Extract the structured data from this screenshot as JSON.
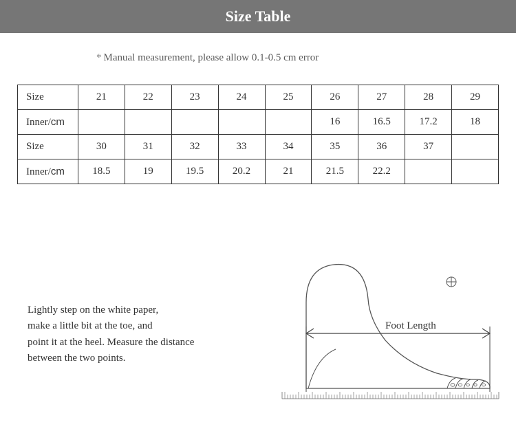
{
  "banner": {
    "title": "Size Table"
  },
  "note": {
    "star": "*",
    "text": "Manual measurement, please allow 0.1-0.5 cm error"
  },
  "table": {
    "row1_label": "Size",
    "row2_label_a": "Inner/",
    "row2_label_b": "cm",
    "row3_label": "Size",
    "row4_label_a": "Inner/",
    "row4_label_b": "cm",
    "row1": [
      "21",
      "22",
      "23",
      "24",
      "25",
      "26",
      "27",
      "28",
      "29"
    ],
    "row2": [
      "",
      "",
      "",
      "",
      "",
      "16",
      "16.5",
      "17.2",
      "18"
    ],
    "row3": [
      "30",
      "31",
      "32",
      "33",
      "34",
      "35",
      "36",
      "37",
      ""
    ],
    "row4": [
      "18.5",
      "19",
      "19.5",
      "20.2",
      "21",
      "21.5",
      "22.2",
      "",
      ""
    ]
  },
  "instructions": {
    "line1": "Lightly step on the white paper,",
    "line2": "make a little bit at the toe, and",
    "line3": "point it at the heel. Measure the distance",
    "line4": "between the two points."
  },
  "diagram": {
    "foot_length_label": "Foot Length",
    "colors": {
      "stroke": "#555555",
      "ruler": "#888888",
      "arrow": "#444444",
      "text": "#333333"
    }
  }
}
